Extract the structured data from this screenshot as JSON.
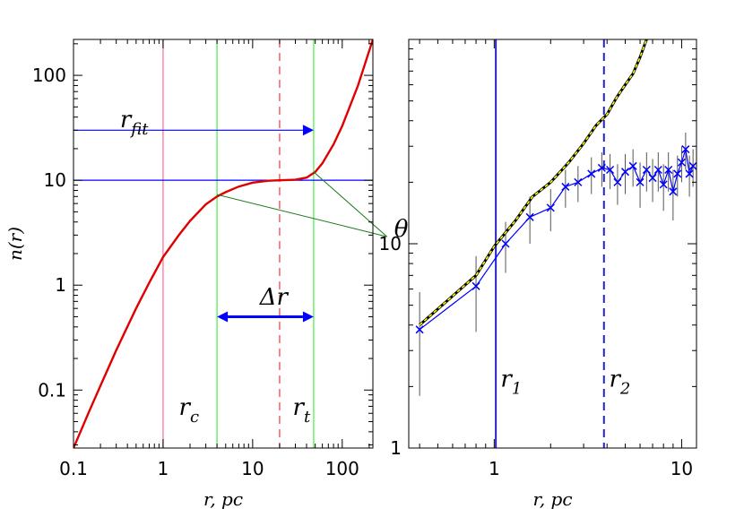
{
  "chart_data": [
    {
      "type": "line",
      "xlabel": "r,  pc",
      "ylabel": "n(r)",
      "xscale": "log",
      "yscale": "log",
      "xlim": [
        0.1,
        220
      ],
      "ylim": [
        0.028,
        220
      ],
      "xticks": [
        0.1,
        1,
        10,
        100
      ],
      "xtick_labels": [
        "0.1",
        "1",
        "10",
        "100"
      ],
      "yticks": [
        0.1,
        1,
        10,
        100
      ],
      "ytick_labels": [
        "0.1",
        "1",
        "10",
        "100"
      ],
      "series": [
        {
          "color": "#e00000",
          "x": [
            0.1,
            0.15,
            0.2,
            0.3,
            0.5,
            0.7,
            1.0,
            1.5,
            2.0,
            3.0,
            4.0,
            5.0,
            7.0,
            10,
            15,
            20,
            30,
            40,
            50,
            60,
            80,
            100,
            150,
            220
          ],
          "y": [
            0.028,
            0.063,
            0.11,
            0.24,
            0.6,
            1.05,
            1.85,
            3.0,
            4.1,
            5.9,
            7.0,
            7.7,
            8.7,
            9.5,
            9.9,
            10.0,
            10.1,
            10.6,
            12.0,
            14.5,
            22,
            33,
            80,
            220
          ]
        }
      ],
      "hlines": [
        {
          "y": 10,
          "color": "#0000ff"
        }
      ],
      "vlines": [
        {
          "x": 1.0,
          "color": "#ff7799",
          "style": "solid"
        },
        {
          "x": 4.0,
          "color": "#55ee55",
          "style": "solid"
        },
        {
          "x": 20,
          "color": "#ff4444",
          "style": "dashed"
        },
        {
          "x": 48,
          "color": "#55ee55",
          "style": "solid"
        }
      ],
      "arrows": [
        {
          "from": [
            0.1,
            30
          ],
          "to": [
            48,
            30
          ],
          "color": "#0000ff",
          "heads": "end"
        },
        {
          "from": [
            4.0,
            0.5
          ],
          "to": [
            48,
            0.5
          ],
          "color": "#0000ff",
          "heads": "both"
        }
      ],
      "annotations": [
        {
          "base": "r",
          "sub": "fit",
          "x": 0.33,
          "y": 32
        },
        {
          "base": "Δr",
          "sub": "",
          "x": 12,
          "y": 0.65
        },
        {
          "base": "θ",
          "sub": "",
          "x": 380,
          "y": 2.9
        },
        {
          "base": "r",
          "sub": "c",
          "x": 1.5,
          "y": 0.058
        },
        {
          "base": "r",
          "sub": "t",
          "x": 28,
          "y": 0.058
        }
      ],
      "theta_lines": [
        {
          "from": [
            380,
            2.9
          ],
          "to": [
            4.0,
            7.3
          ]
        },
        {
          "from": [
            380,
            2.9
          ],
          "to": [
            48,
            12
          ]
        }
      ]
    },
    {
      "type": "line",
      "xlabel": "r,  pc",
      "ylabel": "",
      "xscale": "log",
      "yscale": "log",
      "xlim": [
        0.35,
        12
      ],
      "ylim": [
        1,
        100
      ],
      "xticks": [
        1,
        10
      ],
      "xtick_labels": [
        "1",
        "10"
      ],
      "yticks": [
        1,
        10
      ],
      "ytick_labels": [
        "1",
        "10"
      ],
      "series": [
        {
          "color": "#0000ff",
          "marker": "x",
          "x": [
            0.4,
            0.8,
            1.15,
            1.55,
            2.0,
            2.4,
            2.8,
            3.3,
            3.75,
            4.15,
            4.55,
            5.0,
            5.5,
            6.0,
            6.5,
            7.0,
            7.5,
            8.0,
            8.5,
            9.0,
            9.5,
            10.0,
            10.5,
            11.0,
            11.5
          ],
          "y": [
            3.8,
            6.2,
            10.0,
            13.5,
            15.0,
            19.0,
            20.0,
            22.0,
            23.5,
            23.0,
            20.0,
            22.5,
            24.0,
            20.0,
            23.0,
            21.0,
            23.0,
            19.5,
            23.0,
            18.0,
            22.0,
            25.0,
            29.0,
            22.0,
            24.0
          ],
          "err": [
            2.0,
            2.5,
            2.8,
            3.5,
            3.5,
            4.0,
            4.0,
            4.5,
            4.5,
            4.5,
            4.5,
            5.0,
            5.0,
            5.0,
            5.0,
            5.0,
            5.0,
            5.0,
            5.0,
            5.0,
            5.0,
            5.0,
            6.0,
            5.0,
            5.0
          ]
        },
        {
          "color": "#ffff00",
          "edge_color": "#000000",
          "style": "dashed",
          "x": [
            0.4,
            0.8,
            1.0,
            1.3,
            1.6,
            2.0,
            2.5,
            3.0,
            3.5,
            4.0,
            4.5,
            5.0,
            5.5,
            6.0,
            6.5
          ],
          "y": [
            4.0,
            7.0,
            9.7,
            13.0,
            17.0,
            20.0,
            25.0,
            31.0,
            38.0,
            43.0,
            52.0,
            60.0,
            68.0,
            82.0,
            100
          ]
        }
      ],
      "vlines": [
        {
          "x": 1.02,
          "color": "#2222cc",
          "style": "solid"
        },
        {
          "x": 3.85,
          "color": "#2222cc",
          "style": "dashed"
        }
      ],
      "annotations": [
        {
          "base": "r",
          "sub": "1",
          "x": 1.08,
          "y": 2.0
        },
        {
          "base": "r",
          "sub": "2",
          "x": 4.1,
          "y": 2.0
        }
      ]
    }
  ]
}
